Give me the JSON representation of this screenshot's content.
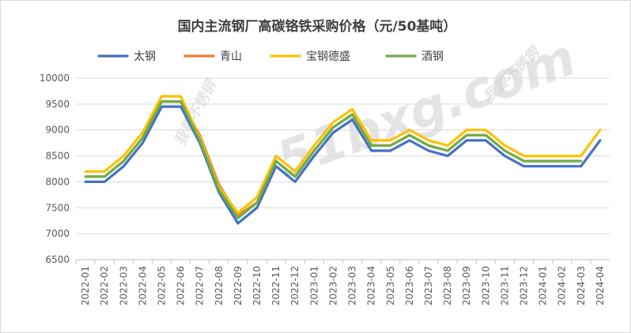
{
  "chart_data": {
    "type": "line",
    "title": "国内主流钢厂高碳铬铁采购价格（元/50基吨）",
    "xlabel": "",
    "ylabel": "",
    "ylim": [
      6500,
      10000
    ],
    "yticks": [
      6500,
      7000,
      7500,
      8000,
      8500,
      9000,
      9500,
      10000
    ],
    "grid": true,
    "legend_position": "top",
    "categories": [
      "2022-01",
      "2022-02",
      "2022-03",
      "2022-04",
      "2022-05",
      "2022-06",
      "2022-07",
      "2022-08",
      "2022-09",
      "2022-10",
      "2022-11",
      "2022-12",
      "2023-01",
      "2023-02",
      "2023-03",
      "2023-04",
      "2023-05",
      "2023-06",
      "2023-07",
      "2023-08",
      "2023-09",
      "2023-10",
      "2023-11",
      "2023-12",
      "2024-01",
      "2024-02",
      "2024-03",
      "2024-04"
    ],
    "series": [
      {
        "name": "太钢",
        "color": "#4472c4",
        "values": [
          8000,
          8000,
          8300,
          8750,
          9450,
          9450,
          8750,
          7800,
          7200,
          7500,
          8300,
          8000,
          8500,
          8950,
          9200,
          8600,
          8600,
          8800,
          8600,
          8500,
          8800,
          8800,
          8500,
          8300,
          8300,
          8300,
          8300,
          8800
        ]
      },
      {
        "name": "青山",
        "color": "#ed7d31",
        "values": [
          8100,
          8100,
          8400,
          8850,
          9550,
          9550,
          8900,
          7950,
          7350,
          7600,
          8400,
          8100,
          8600,
          9050,
          9300,
          8700,
          8700,
          8900,
          8700,
          8600,
          8900,
          8900,
          8600,
          8400,
          8400,
          8400,
          null,
          null
        ]
      },
      {
        "name": "宝钢德盛",
        "color": "#ffc000",
        "values": [
          8200,
          8200,
          8500,
          8950,
          9650,
          9650,
          8850,
          7900,
          7400,
          7700,
          8500,
          8200,
          8700,
          9150,
          9400,
          8800,
          8800,
          9000,
          8800,
          8700,
          9000,
          9000,
          8700,
          8500,
          8500,
          8500,
          8500,
          9000
        ]
      },
      {
        "name": "酒钢",
        "color": "#70ad47",
        "values": [
          8100,
          8100,
          8400,
          8850,
          9550,
          9550,
          8800,
          7850,
          7300,
          7600,
          8400,
          8100,
          8600,
          9050,
          9300,
          8700,
          8700,
          8900,
          8700,
          8600,
          8900,
          8900,
          8600,
          8400,
          8400,
          8400,
          8400,
          null
        ]
      }
    ]
  },
  "watermark": {
    "brand_large": "51bxg.com",
    "brand_small": "我要不锈钢",
    "color": "#cfcfcf"
  }
}
